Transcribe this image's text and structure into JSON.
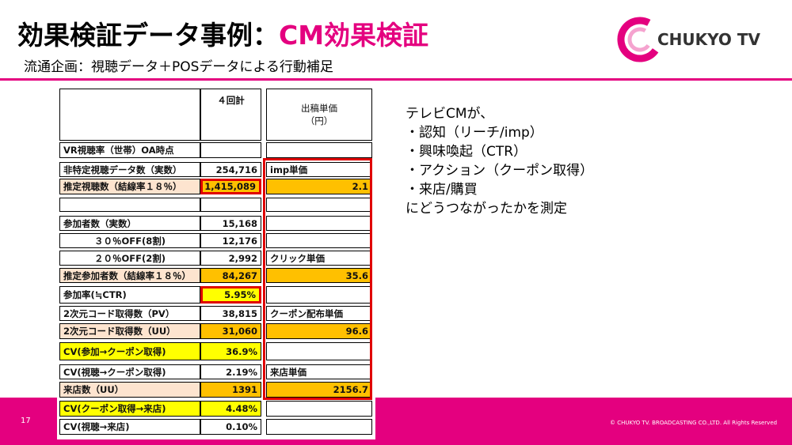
{
  "header": {
    "title": "効果検証データ事例：",
    "title_accent": "CM効果検証",
    "subtitle": "流通企画：視聴データ＋POSデータによる行動補足",
    "logo": "CHUKYO TV"
  },
  "table": {
    "head": {
      "total": "４回計",
      "price": "出稿単価",
      "price_unit": "（円）"
    },
    "rows": [
      [
        "VR視聴率（世帯）OA時点",
        null,
        null
      ],
      [
        "非特定視聴データ数（実数）",
        "254,716",
        "imp単価"
      ],
      [
        "推定視聴数（結線率１８％）",
        "1,415,089",
        "2.1"
      ],
      [
        null,
        null,
        null
      ],
      [
        "参加者数（実数）",
        "15,168",
        null
      ],
      [
        "３０％OFF(8割)",
        "12,176",
        null
      ],
      [
        "２０％OFF(2割)",
        "2,992",
        "クリック単価"
      ],
      [
        "推定参加者数（結線率１８％）",
        "84,267",
        "35.6"
      ],
      [
        "参加率(≒CTR)",
        "5.95%",
        null
      ],
      [
        "2次元コード取得数（PV）",
        "38,815",
        "クーポン配布単価"
      ],
      [
        "2次元コード取得数（UU）",
        "31,060",
        "96.6"
      ],
      [
        "CV(参加→クーポン取得)",
        "36.9%",
        null
      ],
      [
        "CV(視聴→クーポン取得)",
        "2.19%",
        "来店単価"
      ],
      [
        "来店数（UU）",
        "1391",
        "2156.7"
      ],
      [
        "CV(クーポン取得→来店)",
        "4.48%",
        null
      ],
      [
        "CV(視聴→来店)",
        "0.10%",
        null
      ]
    ]
  },
  "notes": [
    "テレビCMが、",
    "・認知（リーチ/imp）",
    "・興味喚起（CTR）",
    "・アクション（クーポン取得）",
    "・来店/購買",
    "にどうつながったかを測定"
  ],
  "footer": {
    "page": "17",
    "copyright": "© CHUKYO TV. BROADCASTING CO.,LTD.  All Rights Reserved"
  }
}
